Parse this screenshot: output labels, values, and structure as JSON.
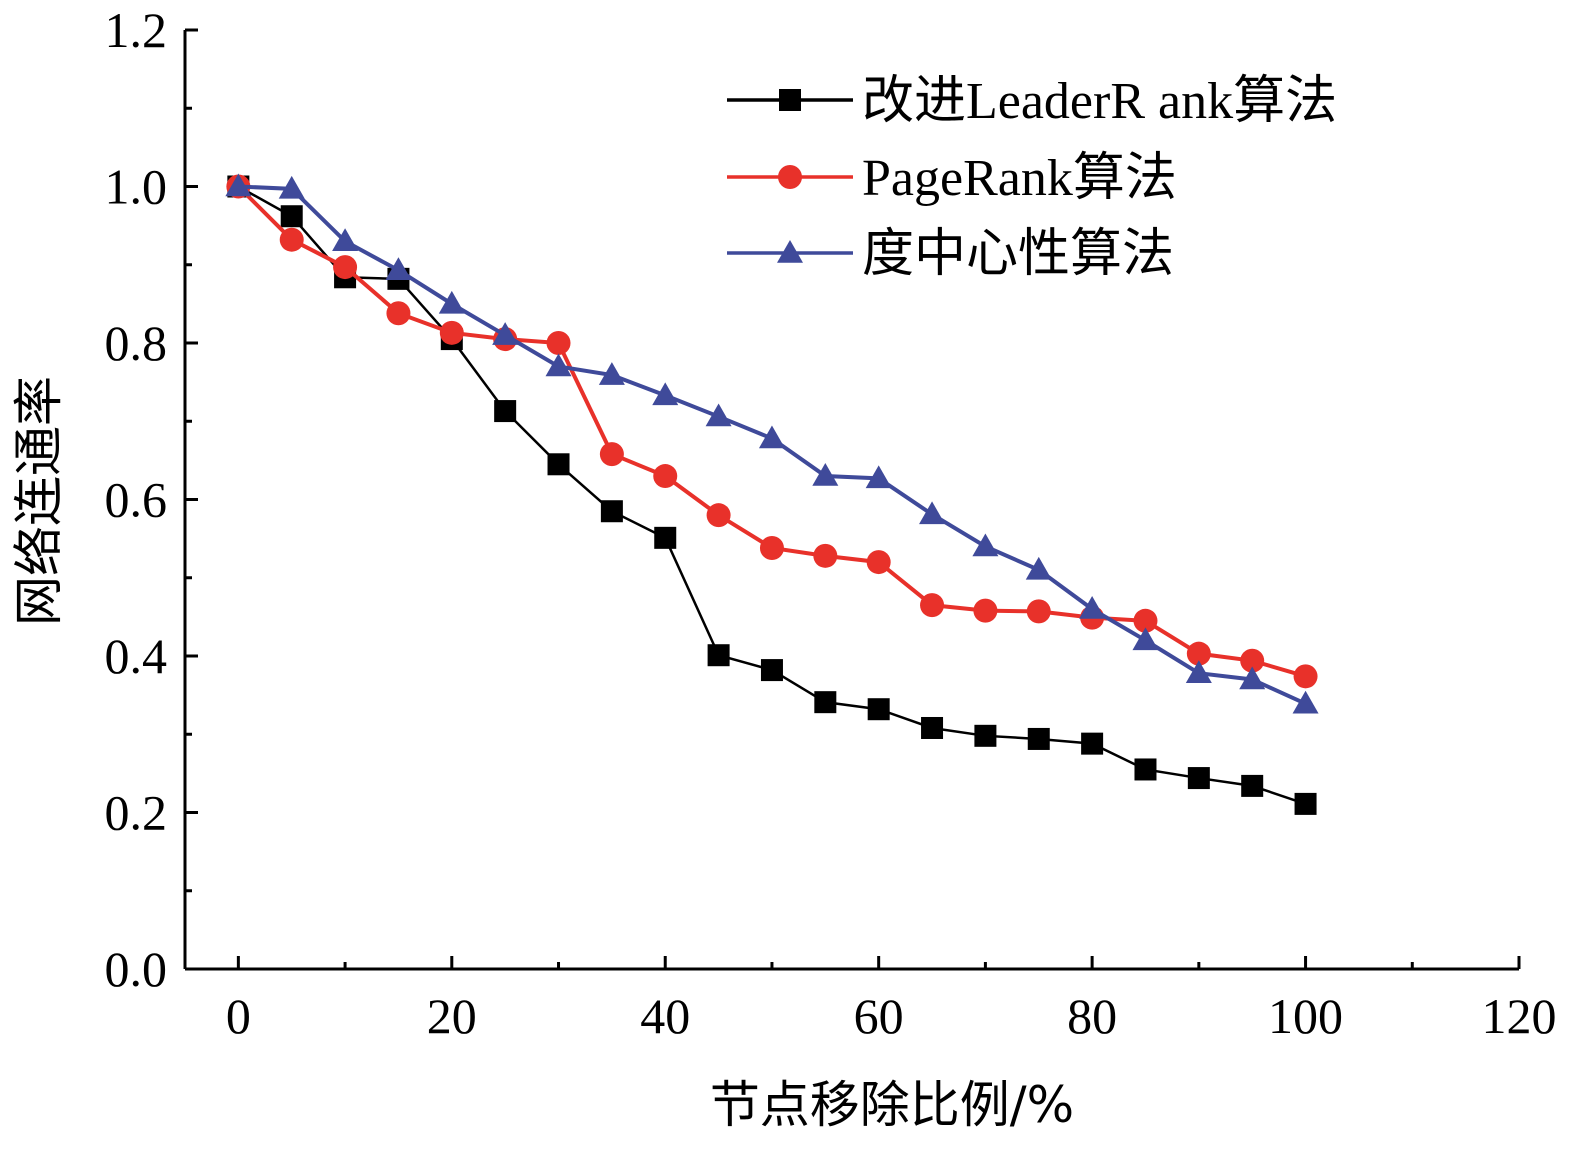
{
  "chart_data": {
    "type": "line",
    "title": "",
    "xlabel": "节点移除比例/%",
    "ylabel": "网络连通率",
    "xlim": [
      -5,
      120
    ],
    "ylim": [
      0,
      1.2
    ],
    "xticks": [
      0,
      20,
      40,
      60,
      80,
      100,
      120
    ],
    "yticks": [
      0.0,
      0.2,
      0.4,
      0.6,
      0.8,
      1.0,
      1.2
    ],
    "xtick_labels": [
      "0",
      "20",
      "40",
      "60",
      "80",
      "100",
      "120"
    ],
    "ytick_labels": [
      "0.0",
      "0.2",
      "0.4",
      "0.6",
      "0.8",
      "1.0",
      "1.2"
    ],
    "grid": false,
    "legend_position": "top-right",
    "x": [
      0,
      5,
      10,
      15,
      20,
      25,
      30,
      35,
      40,
      45,
      50,
      55,
      60,
      65,
      70,
      75,
      80,
      85,
      90,
      95,
      100
    ],
    "series": [
      {
        "name": "改进LeaderR ank算法",
        "color": "#000000",
        "marker": "square",
        "values": [
          1.0,
          0.962,
          0.884,
          0.882,
          0.805,
          0.713,
          0.645,
          0.585,
          0.551,
          0.401,
          0.382,
          0.341,
          0.332,
          0.308,
          0.298,
          0.294,
          0.288,
          0.255,
          0.244,
          0.234,
          0.211
        ]
      },
      {
        "name": "PageRank算法",
        "color": "#e8312a",
        "marker": "circle",
        "values": [
          1.0,
          0.932,
          0.897,
          0.838,
          0.813,
          0.805,
          0.8,
          0.658,
          0.63,
          0.58,
          0.538,
          0.528,
          0.52,
          0.465,
          0.458,
          0.457,
          0.449,
          0.445,
          0.403,
          0.394,
          0.374
        ]
      },
      {
        "name": "度中心性算法",
        "color": "#3f4a9a",
        "marker": "triangle",
        "values": [
          1.0,
          0.997,
          0.93,
          0.893,
          0.85,
          0.81,
          0.77,
          0.759,
          0.733,
          0.706,
          0.678,
          0.63,
          0.627,
          0.581,
          0.54,
          0.51,
          0.46,
          0.42,
          0.378,
          0.37,
          0.339
        ]
      }
    ]
  }
}
